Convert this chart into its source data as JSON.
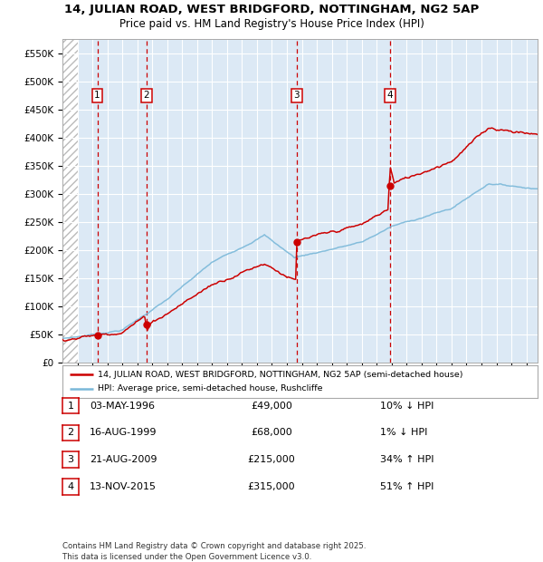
{
  "title_line1": "14, JULIAN ROAD, WEST BRIDGFORD, NOTTINGHAM, NG2 5AP",
  "title_line2": "Price paid vs. HM Land Registry's House Price Index (HPI)",
  "bg_color": "#dce9f5",
  "hpi_line_color": "#7ab8d9",
  "price_line_color": "#cc0000",
  "vline_color": "#cc0000",
  "ylim": [
    0,
    575000
  ],
  "yticks": [
    0,
    50000,
    100000,
    150000,
    200000,
    250000,
    300000,
    350000,
    400000,
    450000,
    500000,
    550000
  ],
  "ytick_labels": [
    "£0",
    "£50K",
    "£100K",
    "£150K",
    "£200K",
    "£250K",
    "£300K",
    "£350K",
    "£400K",
    "£450K",
    "£500K",
    "£550K"
  ],
  "legend_line1": "14, JULIAN ROAD, WEST BRIDGFORD, NOTTINGHAM, NG2 5AP (semi-detached house)",
  "legend_line2": "HPI: Average price, semi-detached house, Rushcliffe",
  "sale_year_decimals": [
    1996.33,
    1999.62,
    2009.64,
    2015.87
  ],
  "sale_prices": [
    49000,
    68000,
    215000,
    315000
  ],
  "table_entries": [
    {
      "num": "1",
      "date": "03-MAY-1996",
      "price": "£49,000",
      "hpi": "10% ↓ HPI"
    },
    {
      "num": "2",
      "date": "16-AUG-1999",
      "price": "£68,000",
      "hpi": "1% ↓ HPI"
    },
    {
      "num": "3",
      "date": "21-AUG-2009",
      "price": "£215,000",
      "hpi": "34% ↑ HPI"
    },
    {
      "num": "4",
      "date": "13-NOV-2015",
      "price": "£315,000",
      "hpi": "51% ↑ HPI"
    }
  ],
  "footer": "Contains HM Land Registry data © Crown copyright and database right 2025.\nThis data is licensed under the Open Government Licence v3.0.",
  "xlim_start": 1994.0,
  "xlim_end": 2025.75,
  "hatch_end": 1995.0
}
